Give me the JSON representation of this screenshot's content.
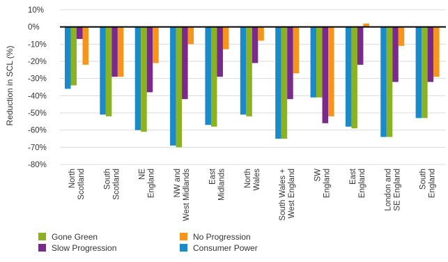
{
  "chart_data": {
    "type": "bar",
    "ylabel": "Reduction in SCL (%)",
    "ylim": [
      -80,
      10
    ],
    "y_ticks": [
      "10%",
      "0%",
      "-10%",
      "-20%",
      "-30%",
      "-40%",
      "-50%",
      "-60%",
      "-70%",
      "-80%"
    ],
    "grid": true,
    "legend_position": "bottom",
    "categories": [
      [
        "North",
        "Scotland"
      ],
      [
        "South",
        "Scotland"
      ],
      [
        "NE",
        "England"
      ],
      [
        "NW and",
        "West Midlands"
      ],
      [
        "East",
        "Midlands"
      ],
      [
        "North",
        "Wales"
      ],
      [
        "South Wales +",
        "West England"
      ],
      [
        "SW",
        "England"
      ],
      [
        "East",
        "England"
      ],
      [
        "London and",
        "SE England"
      ],
      [
        "South",
        "England"
      ]
    ],
    "series": [
      {
        "name": "Consumer Power",
        "color": "#1a8ac8",
        "values": [
          -36,
          -51,
          -60,
          -69,
          -57,
          -51,
          -65,
          -41,
          -58,
          -64,
          -53
        ]
      },
      {
        "name": "Gone Green",
        "color": "#8bb321",
        "values": [
          -34,
          -52,
          -61,
          -70,
          -58,
          -52,
          -65,
          -41,
          -59,
          -64,
          -53
        ]
      },
      {
        "name": "Slow Progression",
        "color": "#7b2a8c",
        "values": [
          -7,
          -29,
          -38,
          -42,
          -29,
          -21,
          -42,
          -56,
          -22,
          -32,
          -32
        ]
      },
      {
        "name": "No Progression",
        "color": "#f7941d",
        "values": [
          -22,
          -29,
          -21,
          -10,
          -13,
          -8,
          -27,
          -52,
          2,
          -11,
          -29
        ]
      }
    ],
    "legend_order": [
      "Gone Green",
      "No Progression",
      "Slow Progression",
      "Consumer Power"
    ]
  }
}
